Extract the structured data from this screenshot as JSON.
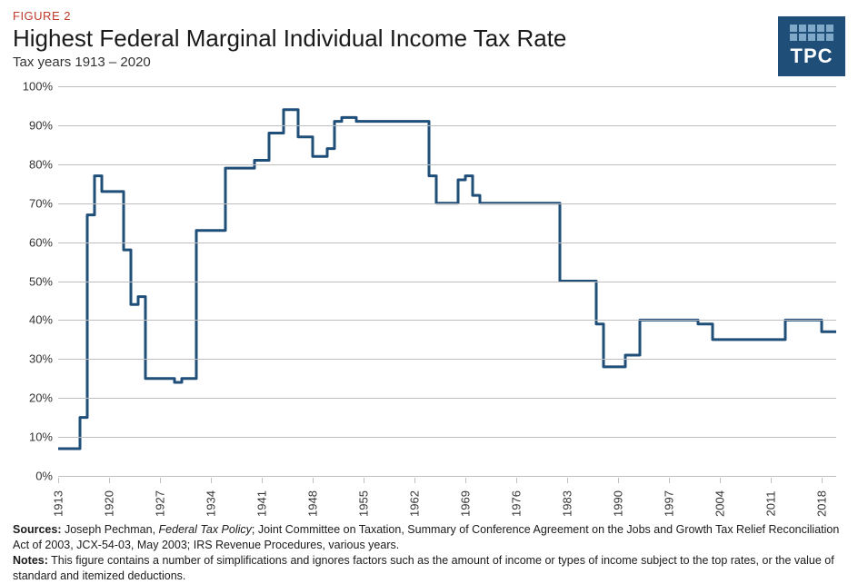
{
  "header": {
    "figure_label": "FIGURE 2",
    "title": "Highest Federal Marginal Individual Income Tax Rate",
    "subtitle": "Tax years 1913 – 2020",
    "logo_text": "TPC",
    "logo_bg": "#1f4e79",
    "logo_cell": "#7fa8c9"
  },
  "chart": {
    "type": "line",
    "background_color": "#ffffff",
    "grid_color": "#bfbfbf",
    "line_color": "#1f4e79",
    "line_width": 3,
    "xlim": [
      1913,
      2020
    ],
    "ylim": [
      0,
      100
    ],
    "ytick_step": 10,
    "y_ticks": [
      0,
      10,
      20,
      30,
      40,
      50,
      60,
      70,
      80,
      90,
      100
    ],
    "y_tick_labels": [
      "0%",
      "10%",
      "20%",
      "30%",
      "40%",
      "50%",
      "60%",
      "70%",
      "80%",
      "90%",
      "100%"
    ],
    "x_ticks": [
      1913,
      1920,
      1927,
      1934,
      1941,
      1948,
      1955,
      1962,
      1969,
      1976,
      1983,
      1990,
      1997,
      2004,
      2011,
      2018
    ],
    "x_tick_labels": [
      "1913",
      "1920",
      "1927",
      "1934",
      "1941",
      "1948",
      "1955",
      "1962",
      "1969",
      "1976",
      "1983",
      "1990",
      "1997",
      "2004",
      "2011",
      "2018"
    ],
    "label_fontsize": 13,
    "label_color": "#333333",
    "series": {
      "years": [
        1913,
        1914,
        1915,
        1916,
        1917,
        1918,
        1919,
        1920,
        1921,
        1922,
        1923,
        1924,
        1925,
        1926,
        1927,
        1928,
        1929,
        1930,
        1931,
        1932,
        1933,
        1934,
        1935,
        1936,
        1937,
        1938,
        1939,
        1940,
        1941,
        1942,
        1943,
        1944,
        1945,
        1946,
        1947,
        1948,
        1949,
        1950,
        1951,
        1952,
        1953,
        1954,
        1955,
        1956,
        1957,
        1958,
        1959,
        1960,
        1961,
        1962,
        1963,
        1964,
        1965,
        1966,
        1967,
        1968,
        1969,
        1970,
        1971,
        1972,
        1973,
        1974,
        1975,
        1976,
        1977,
        1978,
        1979,
        1980,
        1981,
        1982,
        1983,
        1984,
        1985,
        1986,
        1987,
        1988,
        1989,
        1990,
        1991,
        1992,
        1993,
        1994,
        1995,
        1996,
        1997,
        1998,
        1999,
        2000,
        2001,
        2002,
        2003,
        2004,
        2005,
        2006,
        2007,
        2008,
        2009,
        2010,
        2011,
        2012,
        2013,
        2014,
        2015,
        2016,
        2017,
        2018,
        2019,
        2020
      ],
      "values": [
        7,
        7,
        7,
        15,
        67,
        77,
        73,
        73,
        73,
        58,
        44,
        46,
        25,
        25,
        25,
        25,
        24,
        25,
        25,
        63,
        63,
        63,
        63,
        79,
        79,
        79,
        79,
        81,
        81,
        88,
        88,
        94,
        94,
        87,
        87,
        82,
        82,
        84,
        91,
        92,
        92,
        91,
        91,
        91,
        91,
        91,
        91,
        91,
        91,
        91,
        91,
        77,
        70,
        70,
        70,
        76,
        77,
        72,
        70,
        70,
        70,
        70,
        70,
        70,
        70,
        70,
        70,
        70,
        70,
        50,
        50,
        50,
        50,
        50,
        39,
        28,
        28,
        28,
        31,
        31,
        40,
        40,
        40,
        40,
        40,
        40,
        40,
        40,
        39,
        39,
        35,
        35,
        35,
        35,
        35,
        35,
        35,
        35,
        35,
        35,
        40,
        40,
        40,
        40,
        40,
        37,
        37,
        37
      ]
    }
  },
  "notes": {
    "sources_label": "Sources:",
    "sources_text_parts": [
      "Joseph Pechman, ",
      "Federal Tax Policy",
      "; Joint Committee on Taxation, Summary of Conference Agreement on the Jobs and Growth Tax Relief Reconciliation Act of 2003, JCX-54-03, May 2003; IRS Revenue Procedures, various years."
    ],
    "notes_label": "Notes:",
    "notes_text": "This figure contains a number of simplifications and ignores factors such as the amount of income or types of income subject to the top rates, or the value of standard and itemized deductions."
  }
}
